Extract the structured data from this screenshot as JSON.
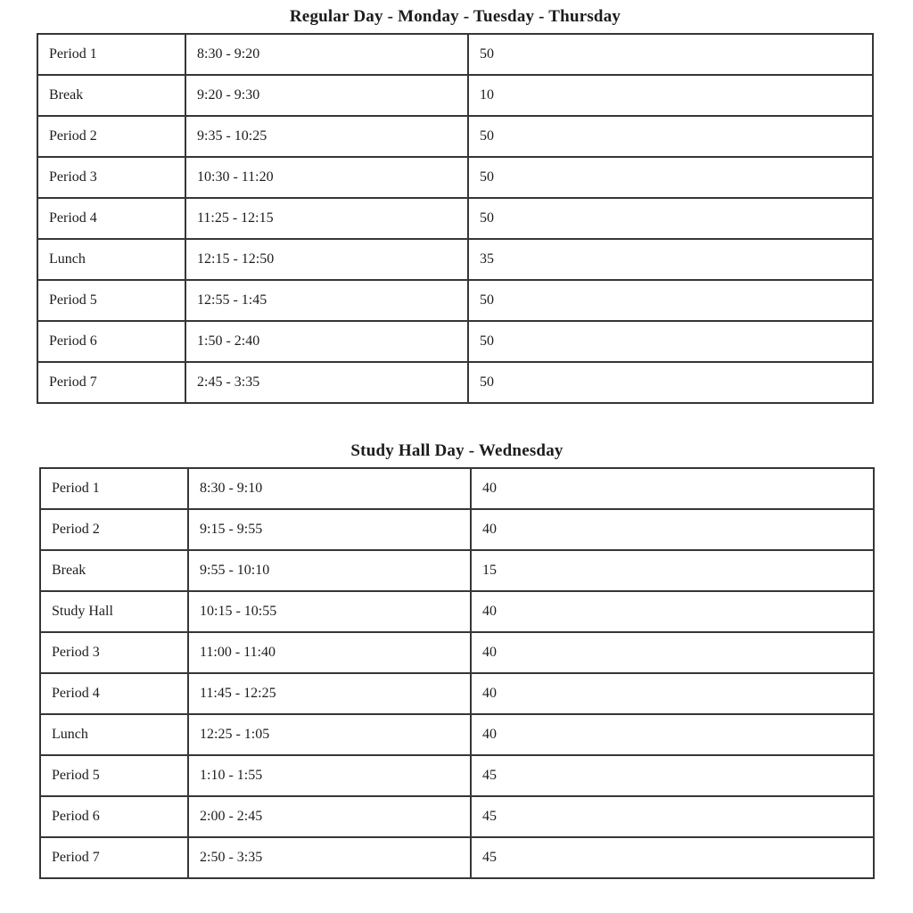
{
  "page": {
    "background": "#ffffff",
    "text_color": "#1c1c1c",
    "border_color": "#363636"
  },
  "tables": [
    {
      "title": "Regular Day - Monday - Tuesday - Thursday",
      "rows": [
        {
          "name": "Period 1",
          "time": "8:30 - 9:20",
          "minutes": "50"
        },
        {
          "name": "Break",
          "time": "9:20 - 9:30",
          "minutes": "10"
        },
        {
          "name": "Period 2",
          "time": "9:35 - 10:25",
          "minutes": "50"
        },
        {
          "name": "Period 3",
          "time": "10:30 - 11:20",
          "minutes": "50"
        },
        {
          "name": "Period 4",
          "time": "11:25 - 12:15",
          "minutes": "50"
        },
        {
          "name": "Lunch",
          "time": "12:15 - 12:50",
          "minutes": "35"
        },
        {
          "name": "Period 5",
          "time": "12:55 - 1:45",
          "minutes": "50"
        },
        {
          "name": "Period 6",
          "time": "1:50 - 2:40",
          "minutes": "50"
        },
        {
          "name": "Period 7",
          "time": "2:45 - 3:35",
          "minutes": "50"
        }
      ]
    },
    {
      "title": "Study Hall Day - Wednesday",
      "rows": [
        {
          "name": "Period 1",
          "time": "8:30 - 9:10",
          "minutes": "40"
        },
        {
          "name": "Period 2",
          "time": "9:15 - 9:55",
          "minutes": "40"
        },
        {
          "name": "Break",
          "time": "9:55 - 10:10",
          "minutes": "15"
        },
        {
          "name": "Study Hall",
          "time": "10:15 - 10:55",
          "minutes": "40"
        },
        {
          "name": "Period 3",
          "time": "11:00 - 11:40",
          "minutes": "40"
        },
        {
          "name": "Period 4",
          "time": "11:45 - 12:25",
          "minutes": "40"
        },
        {
          "name": "Lunch",
          "time": "12:25 - 1:05",
          "minutes": "40"
        },
        {
          "name": "Period 5",
          "time": "1:10 - 1:55",
          "minutes": "45"
        },
        {
          "name": "Period 6",
          "time": "2:00 - 2:45",
          "minutes": "45"
        },
        {
          "name": "Period 7",
          "time": "2:50 - 3:35",
          "minutes": "45"
        }
      ]
    }
  ]
}
